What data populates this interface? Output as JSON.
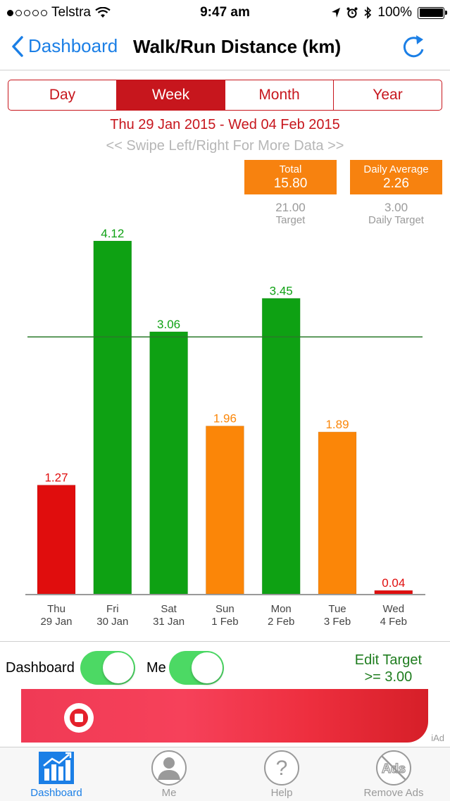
{
  "status_bar": {
    "carrier": "Telstra",
    "time": "9:47 am",
    "battery": "100%"
  },
  "nav": {
    "back_label": "Dashboard",
    "title": "Walk/Run Distance (km)"
  },
  "segments": [
    {
      "label": "Day",
      "active": false
    },
    {
      "label": "Week",
      "active": true
    },
    {
      "label": "Month",
      "active": false
    },
    {
      "label": "Year",
      "active": false
    }
  ],
  "date_range": "Thu 29 Jan 2015 - Wed 04 Feb 2015",
  "swipe_hint": "<< Swipe Left/Right For More Data >>",
  "summary": {
    "total": {
      "label": "Total",
      "value": "15.80",
      "target_value": "21.00",
      "target_label": "Target"
    },
    "daily_average": {
      "label": "Daily Average",
      "value": "2.26",
      "target_value": "3.00",
      "target_label": "Daily Target"
    }
  },
  "chart_data": {
    "type": "bar",
    "categories": [
      "Thu 29 Jan",
      "Fri 30 Jan",
      "Sat 31 Jan",
      "Sun 1 Feb",
      "Mon 2 Feb",
      "Tue 3 Feb",
      "Wed 4 Feb"
    ],
    "day_labels": [
      "Thu",
      "Fri",
      "Sat",
      "Sun",
      "Mon",
      "Tue",
      "Wed"
    ],
    "date_labels": [
      "29 Jan",
      "30 Jan",
      "31 Jan",
      "1 Feb",
      "2 Feb",
      "3 Feb",
      "4 Feb"
    ],
    "values": [
      1.27,
      4.12,
      3.06,
      1.96,
      3.45,
      1.89,
      0.04
    ],
    "value_labels": [
      "1.27",
      "4.12",
      "3.06",
      "1.96",
      "3.45",
      "1.89",
      "0.04"
    ],
    "bar_colors": [
      "#e00d0d",
      "#0ea113",
      "#0ea113",
      "#fb8608",
      "#0ea113",
      "#fb8608",
      "#e00d0d"
    ],
    "target_line": 3.0,
    "target_line_color": "#2a7a2a",
    "ylim": [
      0,
      4.12
    ],
    "grid": false
  },
  "controls": {
    "dashboard_label": "Dashboard",
    "dashboard_on": true,
    "me_label": "Me",
    "me_on": true,
    "edit_target_label": "Edit Target",
    "edit_target_value": ">= 3.00"
  },
  "ad": {
    "iad_label": "iAd",
    "brand_color": "#e4202a"
  },
  "tabs": [
    {
      "label": "Dashboard",
      "icon": "bar-chart-icon",
      "active": true
    },
    {
      "label": "Me",
      "icon": "person-icon",
      "active": false
    },
    {
      "label": "Help",
      "icon": "question-icon",
      "active": false
    },
    {
      "label": "Remove Ads",
      "icon": "no-ads-icon",
      "active": false
    }
  ],
  "colors": {
    "accent_blue": "#1b7fe6",
    "accent_red": "#c7161d",
    "orange": "#f7820f",
    "green": "#4cd964"
  }
}
